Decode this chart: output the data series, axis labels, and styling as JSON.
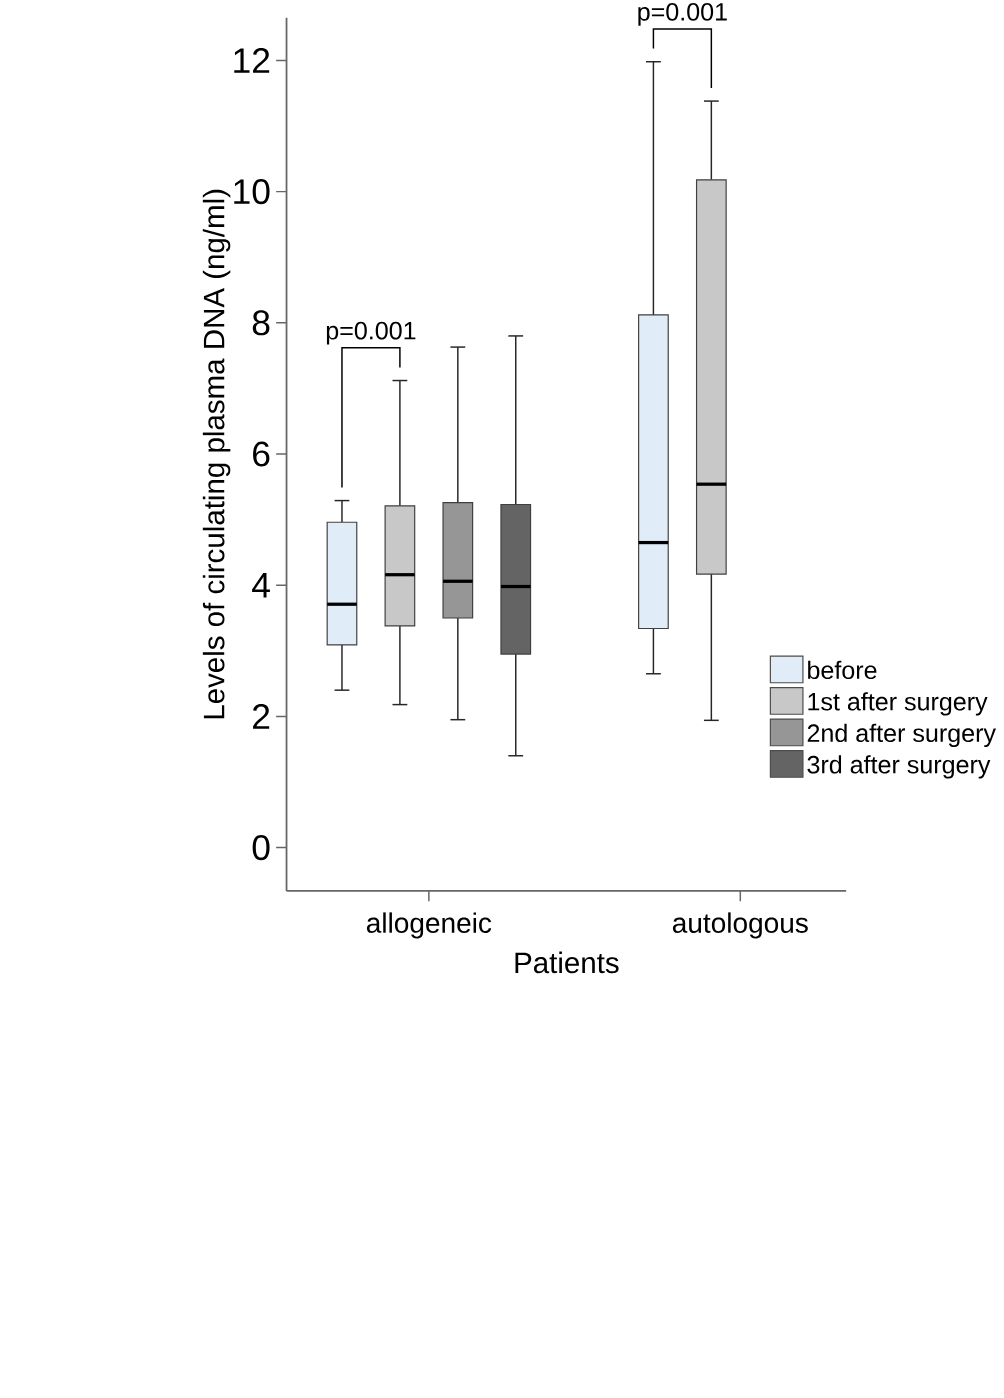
{
  "chart_data": {
    "type": "box",
    "xlabel": "Patients",
    "ylabel": "Levels of circulating plasma DNA (ng/ml)",
    "categories": [
      "allogeneic",
      "autologous"
    ],
    "series": [
      {
        "name": "before",
        "color": "#e0ecf8",
        "boxes": [
          {
            "low": 2.4,
            "q1": 3.09,
            "median": 3.71,
            "q3": 4.96,
            "high": 5.29
          },
          {
            "low": 2.65,
            "q1": 3.34,
            "median": 4.65,
            "q3": 8.12,
            "high": 11.98
          }
        ]
      },
      {
        "name": "1st after surgery",
        "color": "#c8c8c8",
        "boxes": [
          {
            "low": 2.18,
            "q1": 3.38,
            "median": 4.16,
            "q3": 5.21,
            "high": 7.12
          },
          {
            "low": 1.94,
            "q1": 4.17,
            "median": 5.54,
            "q3": 10.18,
            "high": 11.38
          }
        ]
      },
      {
        "name": "2nd after surgery",
        "color": "#969696",
        "boxes": [
          {
            "low": 1.95,
            "q1": 3.5,
            "median": 4.06,
            "q3": 5.26,
            "high": 7.63
          },
          null
        ]
      },
      {
        "name": "3rd after surgery",
        "color": "#646464",
        "boxes": [
          {
            "low": 1.4,
            "q1": 2.95,
            "median": 3.98,
            "q3": 5.23,
            "high": 7.8
          },
          null
        ]
      }
    ],
    "ylim": [
      -0.66,
      12.65
    ],
    "yticks": [
      0,
      2,
      4,
      6,
      8,
      10,
      12
    ],
    "legend": "right",
    "annotations": [
      "p=0.001",
      "p=0.001"
    ]
  }
}
